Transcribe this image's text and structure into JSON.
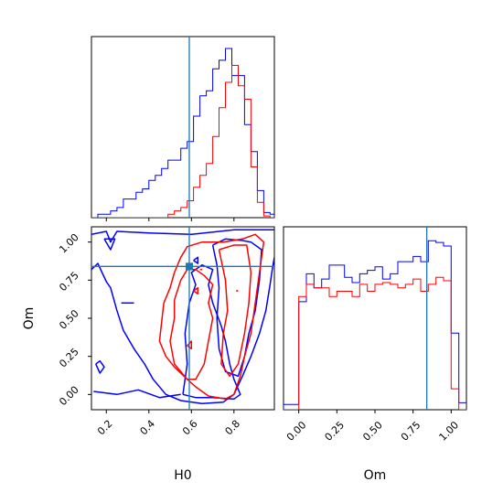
{
  "chart_data": {
    "type": "corner",
    "parameters": [
      "H0",
      "Om"
    ],
    "truth": {
      "H0": 0.59,
      "Om": 0.84
    },
    "colors": {
      "blue_series": "#0000ff",
      "red_series": "#ff0000",
      "truth_line": "#1f77b4"
    },
    "H0_hist": {
      "xlim": [
        0.13,
        0.99
      ],
      "bin_edges": [
        0.13,
        0.16,
        0.19,
        0.22,
        0.25,
        0.28,
        0.31,
        0.34,
        0.37,
        0.4,
        0.43,
        0.46,
        0.49,
        0.52,
        0.55,
        0.58,
        0.61,
        0.64,
        0.67,
        0.7,
        0.73,
        0.76,
        0.79,
        0.82,
        0.85,
        0.88,
        0.91,
        0.94,
        0.97,
        0.99
      ],
      "blue": [
        0,
        0.02,
        0.02,
        0.04,
        0.06,
        0.11,
        0.11,
        0.15,
        0.17,
        0.22,
        0.25,
        0.29,
        0.34,
        0.34,
        0.41,
        0.45,
        0.6,
        0.72,
        0.75,
        0.88,
        0.93,
        1.0,
        0.84,
        0.84,
        0.55,
        0.39,
        0.16,
        0.03,
        0.02
      ],
      "red": [
        0,
        0,
        0,
        0,
        0,
        0,
        0,
        0,
        0,
        0,
        0,
        0,
        0.02,
        0.04,
        0.06,
        0.1,
        0.18,
        0.25,
        0.32,
        0.48,
        0.65,
        0.8,
        0.9,
        0.78,
        0.7,
        0.3,
        0.09,
        0.01,
        0
      ]
    },
    "Om_hist": {
      "xlim": [
        -0.1,
        1.1
      ],
      "xticks": [
        "0.00",
        "0.25",
        "0.50",
        "0.75",
        "1.00"
      ],
      "bin_edges": [
        -0.1,
        -0.05,
        0.0,
        0.05,
        0.1,
        0.15,
        0.2,
        0.25,
        0.3,
        0.35,
        0.4,
        0.45,
        0.5,
        0.55,
        0.6,
        0.65,
        0.7,
        0.75,
        0.8,
        0.85,
        0.9,
        0.95,
        1.0,
        1.05,
        1.1
      ],
      "blue": [
        0.03,
        0.03,
        0.62,
        0.78,
        0.7,
        0.75,
        0.83,
        0.83,
        0.76,
        0.73,
        0.78,
        0.8,
        0.82,
        0.75,
        0.78,
        0.85,
        0.85,
        0.88,
        0.85,
        0.97,
        0.96,
        0.94,
        0.44,
        0.04
      ],
      "red": [
        0,
        0,
        0.65,
        0.72,
        0.7,
        0.7,
        0.65,
        0.68,
        0.68,
        0.65,
        0.72,
        0.68,
        0.72,
        0.73,
        0.72,
        0.7,
        0.72,
        0.75,
        0.68,
        0.72,
        0.76,
        0.74,
        0.12,
        0
      ]
    },
    "H0_Om_contours": {
      "xlim": [
        0.13,
        0.99
      ],
      "ylim": [
        -0.1,
        1.1
      ],
      "xticks": [
        "0.2",
        "0.4",
        "0.6",
        "0.8"
      ],
      "yticks": [
        "0.00",
        "0.25",
        "0.50",
        "0.75",
        "1.00"
      ],
      "xlabel": "H0",
      "ylabel": "Om",
      "blue": [
        [
          [
            0.13,
            1.05
          ],
          [
            0.2,
            1.07
          ],
          [
            0.22,
            1.0
          ],
          [
            0.25,
            1.07
          ],
          [
            0.4,
            1.06
          ],
          [
            0.6,
            1.05
          ],
          [
            0.8,
            1.08
          ],
          [
            0.99,
            1.08
          ]
        ],
        [
          [
            0.13,
            0.82
          ],
          [
            0.16,
            0.86
          ],
          [
            0.18,
            0.8
          ],
          [
            0.2,
            0.74
          ],
          [
            0.22,
            0.7
          ],
          [
            0.25,
            0.55
          ],
          [
            0.28,
            0.42
          ],
          [
            0.33,
            0.3
          ],
          [
            0.38,
            0.2
          ],
          [
            0.42,
            0.1
          ],
          [
            0.48,
            0.0
          ],
          [
            0.55,
            -0.04
          ],
          [
            0.65,
            -0.06
          ],
          [
            0.75,
            -0.05
          ],
          [
            0.8,
            0.0
          ],
          [
            0.84,
            0.12
          ],
          [
            0.88,
            0.25
          ],
          [
            0.92,
            0.4
          ],
          [
            0.95,
            0.55
          ],
          [
            0.97,
            0.72
          ],
          [
            0.98,
            0.82
          ],
          [
            0.99,
            0.9
          ]
        ],
        [
          [
            0.19,
            1.02
          ],
          [
            0.24,
            1.02
          ],
          [
            0.22,
            0.95
          ],
          [
            0.19,
            1.02
          ]
        ],
        [
          [
            0.15,
            0.2
          ],
          [
            0.17,
            0.22
          ],
          [
            0.19,
            0.18
          ],
          [
            0.17,
            0.14
          ],
          [
            0.15,
            0.2
          ]
        ],
        [
          [
            0.14,
            0.02
          ],
          [
            0.25,
            0.0
          ],
          [
            0.35,
            0.03
          ],
          [
            0.45,
            -0.02
          ],
          [
            0.55,
            0.0
          ]
        ],
        [
          [
            0.27,
            0.6
          ],
          [
            0.33,
            0.6
          ]
        ],
        [
          [
            0.56,
            0.0
          ],
          [
            0.58,
            0.2
          ],
          [
            0.57,
            0.4
          ],
          [
            0.59,
            0.6
          ],
          [
            0.62,
            0.72
          ],
          [
            0.6,
            0.8
          ],
          [
            0.65,
            0.85
          ],
          [
            0.7,
            0.82
          ],
          [
            0.68,
            0.72
          ],
          [
            0.7,
            0.6
          ],
          [
            0.74,
            0.45
          ],
          [
            0.76,
            0.35
          ],
          [
            0.78,
            0.2
          ],
          [
            0.8,
            0.1
          ],
          [
            0.83,
            0.0
          ],
          [
            0.8,
            -0.03
          ],
          [
            0.7,
            -0.02
          ],
          [
            0.62,
            -0.02
          ],
          [
            0.56,
            0.0
          ]
        ],
        [
          [
            0.7,
            0.98
          ],
          [
            0.76,
            1.02
          ],
          [
            0.84,
            1.01
          ],
          [
            0.88,
            1.0
          ],
          [
            0.93,
            0.95
          ],
          [
            0.92,
            0.75
          ],
          [
            0.9,
            0.55
          ],
          [
            0.87,
            0.4
          ],
          [
            0.85,
            0.25
          ],
          [
            0.82,
            0.12
          ],
          [
            0.76,
            0.15
          ],
          [
            0.73,
            0.3
          ],
          [
            0.72,
            0.5
          ],
          [
            0.73,
            0.7
          ],
          [
            0.72,
            0.85
          ],
          [
            0.7,
            0.98
          ]
        ],
        [
          [
            0.61,
            0.88
          ],
          [
            0.63,
            0.9
          ],
          [
            0.63,
            0.86
          ],
          [
            0.61,
            0.88
          ]
        ]
      ],
      "red": [
        [
          [
            0.47,
            0.6
          ],
          [
            0.5,
            0.7
          ],
          [
            0.52,
            0.8
          ],
          [
            0.55,
            0.9
          ],
          [
            0.58,
            0.97
          ],
          [
            0.65,
            1.0
          ],
          [
            0.75,
            1.0
          ],
          [
            0.84,
            1.02
          ],
          [
            0.9,
            1.05
          ],
          [
            0.94,
            1.0
          ],
          [
            0.92,
            0.8
          ],
          [
            0.9,
            0.6
          ],
          [
            0.88,
            0.4
          ],
          [
            0.85,
            0.25
          ],
          [
            0.83,
            0.12
          ],
          [
            0.8,
            0.0
          ],
          [
            0.76,
            -0.03
          ],
          [
            0.68,
            -0.01
          ],
          [
            0.62,
            0.05
          ],
          [
            0.58,
            0.1
          ],
          [
            0.52,
            0.18
          ],
          [
            0.48,
            0.25
          ],
          [
            0.45,
            0.35
          ],
          [
            0.47,
            0.6
          ]
        ],
        [
          [
            0.52,
            0.62
          ],
          [
            0.55,
            0.75
          ],
          [
            0.58,
            0.82
          ],
          [
            0.62,
            0.82
          ],
          [
            0.66,
            0.78
          ],
          [
            0.7,
            0.72
          ],
          [
            0.68,
            0.6
          ],
          [
            0.7,
            0.5
          ],
          [
            0.68,
            0.35
          ],
          [
            0.66,
            0.2
          ],
          [
            0.62,
            0.1
          ],
          [
            0.58,
            0.1
          ],
          [
            0.52,
            0.2
          ],
          [
            0.5,
            0.35
          ],
          [
            0.52,
            0.5
          ],
          [
            0.52,
            0.62
          ]
        ],
        [
          [
            0.73,
            0.95
          ],
          [
            0.8,
            0.98
          ],
          [
            0.86,
            0.98
          ],
          [
            0.88,
            0.8
          ],
          [
            0.87,
            0.6
          ],
          [
            0.85,
            0.4
          ],
          [
            0.82,
            0.2
          ],
          [
            0.78,
            0.12
          ],
          [
            0.74,
            0.2
          ],
          [
            0.75,
            0.4
          ],
          [
            0.77,
            0.55
          ],
          [
            0.76,
            0.75
          ],
          [
            0.73,
            0.95
          ]
        ],
        [
          [
            0.58,
            0.32
          ],
          [
            0.6,
            0.35
          ],
          [
            0.6,
            0.3
          ],
          [
            0.58,
            0.32
          ]
        ],
        [
          [
            0.61,
            0.68
          ],
          [
            0.63,
            0.7
          ],
          [
            0.63,
            0.66
          ],
          [
            0.61,
            0.68
          ]
        ],
        [
          [
            0.64,
            0.82
          ],
          [
            0.65,
            0.82
          ]
        ],
        [
          [
            0.81,
            0.68
          ],
          [
            0.82,
            0.68
          ]
        ]
      ]
    }
  }
}
